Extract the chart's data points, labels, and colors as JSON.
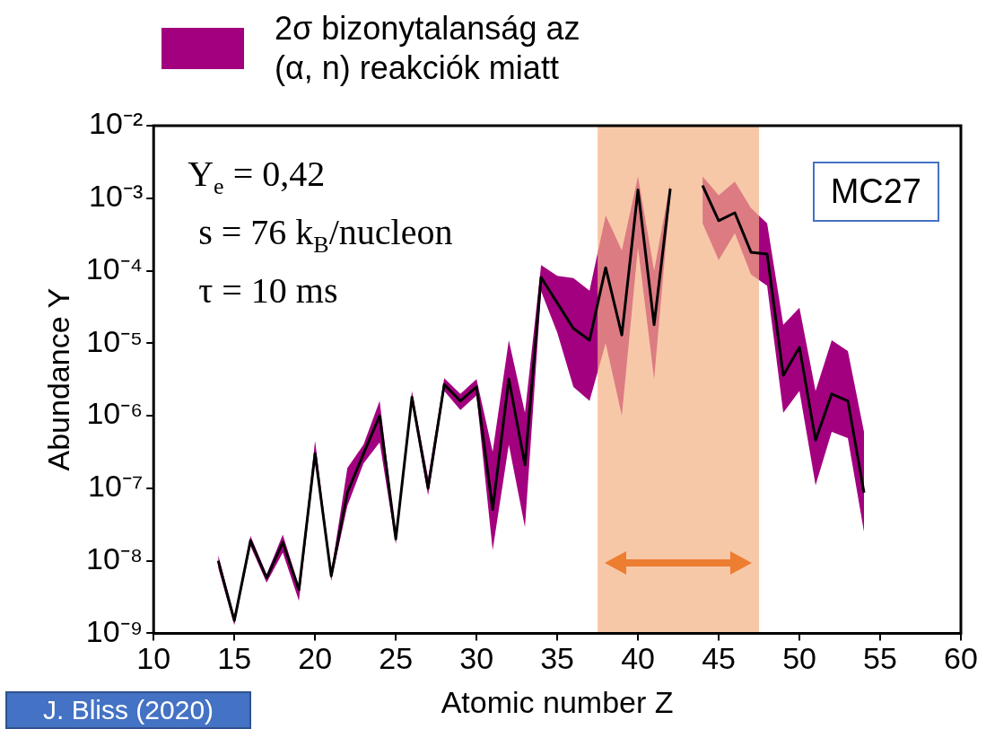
{
  "chart_data": {
    "type": "line",
    "xlabel": "Atomic number Z",
    "ylabel": "Abundance Y",
    "x": [
      14,
      15,
      16,
      17,
      18,
      19,
      20,
      21,
      22,
      23,
      24,
      25,
      26,
      27,
      28,
      29,
      30,
      31,
      32,
      33,
      34,
      35,
      36,
      37,
      38,
      39,
      40,
      41,
      42,
      43,
      44,
      45,
      46,
      47,
      48,
      49,
      50,
      51,
      52,
      53,
      54
    ],
    "series": [
      {
        "name": "2σ bizonytalanság az (α, n) reakciók miatt",
        "color": "#000000",
        "values": [
          1e-08,
          1.5e-09,
          1.9e-08,
          5.8e-09,
          1.8e-08,
          4e-09,
          3e-07,
          6.2e-09,
          8.7e-08,
          3e-07,
          1e-06,
          2e-08,
          1.8e-06,
          1e-07,
          2.7e-06,
          1.6e-06,
          2.5e-06,
          5.1e-08,
          3.2e-06,
          2.1e-07,
          8.1e-05,
          3.6e-05,
          1.6e-05,
          1.1e-05,
          0.00011,
          1.3e-05,
          0.0013,
          1.8e-05,
          0.00135,
          null,
          0.0015,
          0.00049,
          0.00063,
          0.00018,
          0.00017,
          3.6e-06,
          8.8e-06,
          4.6e-07,
          2e-06,
          1.6e-06,
          8.7e-08
        ],
        "upper": [
          1.2e-08,
          1.7e-09,
          2.2e-08,
          6.5e-09,
          2.3e-08,
          4.5e-09,
          4.5e-07,
          7e-09,
          1.9e-07,
          4e-07,
          1.6e-06,
          2.3e-08,
          2.2e-06,
          1.4e-07,
          3.3e-06,
          2e-06,
          3.2e-06,
          3.2e-07,
          1.1e-05,
          1.1e-06,
          0.00012,
          8.5e-05,
          7.9e-05,
          5.3e-05,
          0.00058,
          0.00019,
          0.002,
          0.0001,
          0.0016,
          null,
          0.002,
          0.0011,
          0.0017,
          0.00073,
          0.00045,
          1.8e-05,
          3.1e-05,
          2.2e-06,
          1.1e-05,
          7.8e-06,
          6e-07
        ],
        "lower": [
          8e-09,
          1.3e-09,
          1.6e-08,
          5e-09,
          1.3e-08,
          2.8e-09,
          2.5e-07,
          5.3e-09,
          5.7e-08,
          2.2e-07,
          4.3e-07,
          1.7e-08,
          1.5e-06,
          8e-08,
          2.2e-06,
          1.2e-06,
          1.9e-06,
          1.4e-08,
          4e-07,
          2.9e-08,
          5.2e-05,
          1.4e-05,
          2.5e-06,
          1.6e-06,
          1e-05,
          1e-06,
          0.00021,
          3.2e-06,
          0.0011,
          null,
          0.00045,
          0.00014,
          0.00033,
          8.9e-05,
          6.2e-05,
          1.1e-06,
          2.2e-06,
          1.1e-07,
          6e-07,
          4.9e-07,
          2.5e-08
        ]
      }
    ],
    "log": "y",
    "xlim": [
      10,
      60
    ],
    "xticks": [
      10,
      15,
      20,
      25,
      30,
      35,
      40,
      45,
      50,
      55,
      60
    ],
    "ylim": [
      1e-09,
      0.01
    ],
    "yticks": [
      {
        "value": 1e-09,
        "label": "10⁻⁹"
      },
      {
        "value": 1e-08,
        "label": "10⁻⁸"
      },
      {
        "value": 1e-07,
        "label": "10⁻⁷"
      },
      {
        "value": 1e-06,
        "label": "10⁻⁶"
      },
      {
        "value": 1e-05,
        "label": "10⁻⁵"
      },
      {
        "value": 0.0001,
        "label": "10⁻⁴"
      },
      {
        "value": 0.001,
        "label": "10⁻³"
      },
      {
        "value": 0.01,
        "label": "10⁻²"
      }
    ],
    "bands": [
      {
        "axis": "x",
        "from": 37.5,
        "to": 47.5,
        "color": "#f4b183"
      }
    ],
    "annotations": [
      "Y$_{e}$ = 0,42",
      "s = 76 k$_{B}$/nucleon",
      "τ = 10 ms",
      "MC27",
      "J. Bliss (2020)"
    ],
    "legend": "top",
    "grid": false,
    "marker": "none"
  }
}
